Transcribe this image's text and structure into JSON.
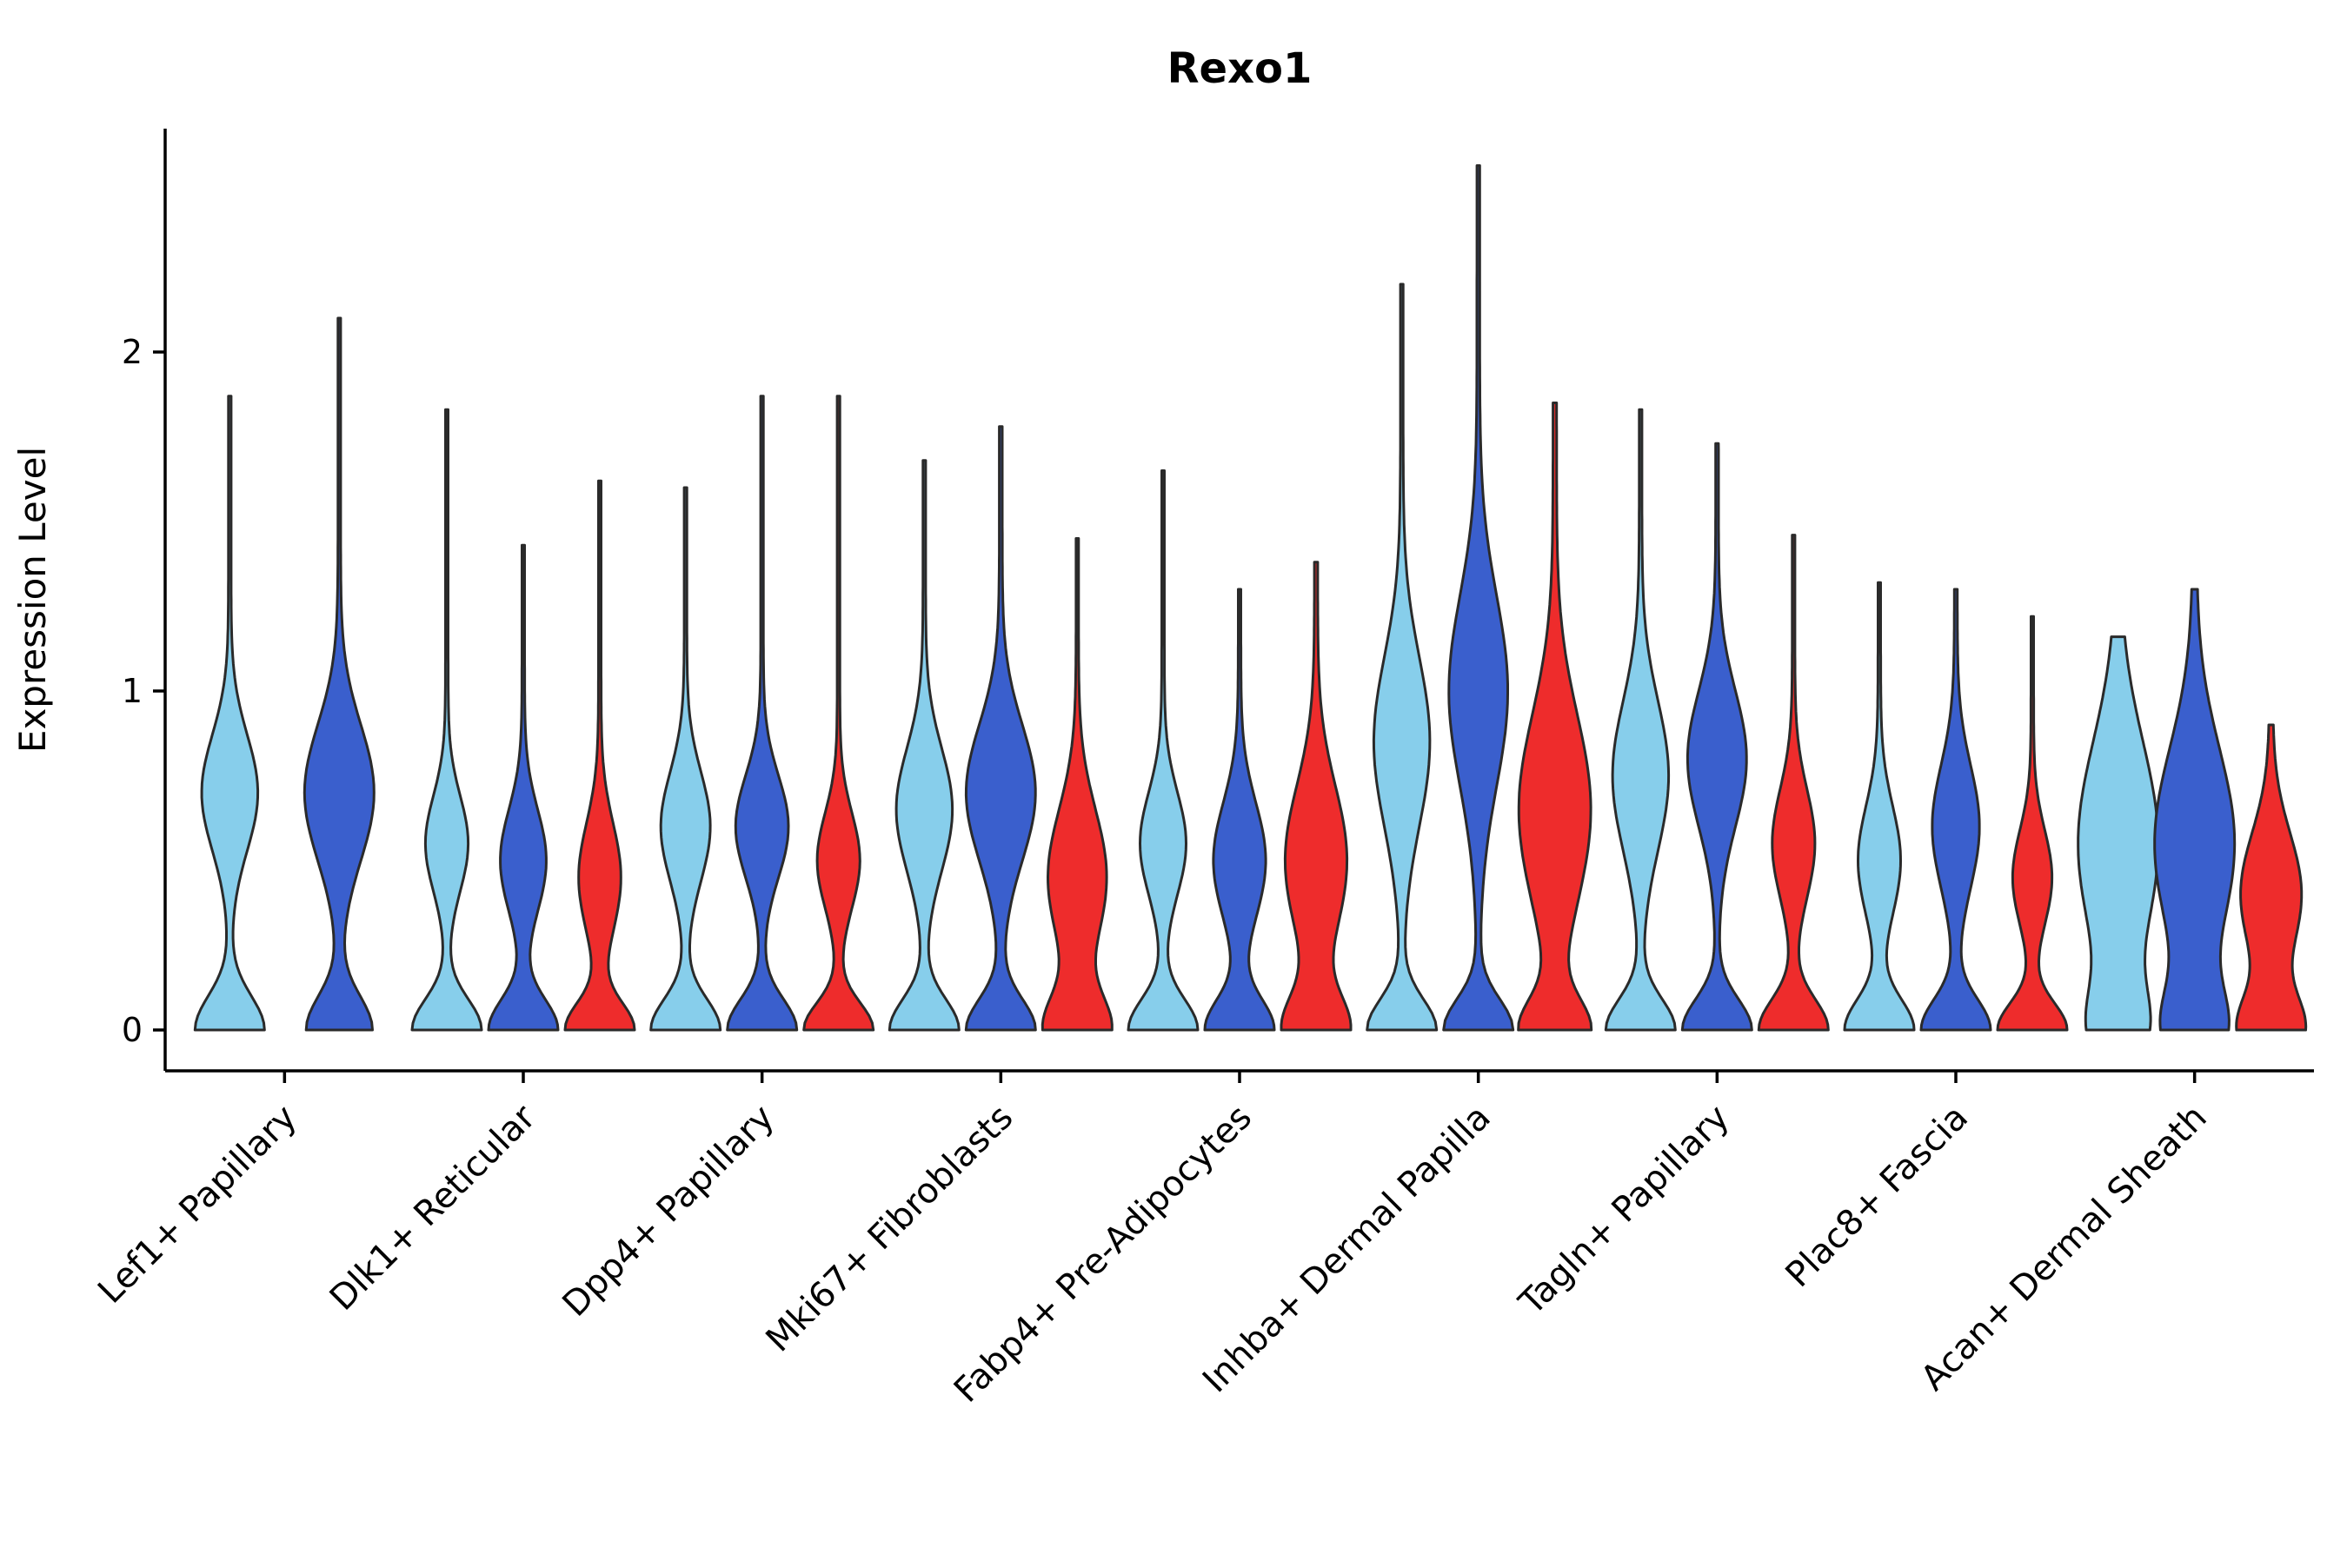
{
  "chart_data": {
    "type": "violin",
    "title": "Rexo1",
    "ylabel": "Expression Level",
    "xlabel": "",
    "ylim": [
      0,
      2.6
    ],
    "yticks": [
      0,
      1,
      2
    ],
    "grid": false,
    "legend": "none",
    "series_colors": [
      "#87CEEB",
      "#3A5FCD",
      "#EE2C2C"
    ],
    "stroke_color": "#2A2A2A",
    "axis_color": "#000000",
    "categories": [
      "Lef1+ Papillary",
      "Dlk1+ Reticular",
      "Dpp4+ Papillary",
      "Mki67+ Fibroblasts",
      "Fabp4+ Pre-Adipocytes",
      "Inhba+ Dermal Papilla",
      "Tagln+ Papillary",
      "Plac8+ Fascia",
      "Acan+ Dermal Sheath"
    ],
    "groups": [
      {
        "category": "Lef1+ Papillary",
        "violins": [
          {
            "c": 0,
            "max": 1.87,
            "base": 0.04,
            "comps": [
              {
                "mu": 0,
                "sigma": 0.1,
                "amp": 1.0
              },
              {
                "mu": 0.7,
                "sigma": 0.17,
                "amp": 0.8
              }
            ]
          },
          {
            "c": 1,
            "max": 2.1,
            "base": 0.04,
            "comps": [
              {
                "mu": 0,
                "sigma": 0.1,
                "amp": 0.95
              },
              {
                "mu": 0.7,
                "sigma": 0.2,
                "amp": 1.0
              }
            ]
          }
        ]
      },
      {
        "category": "Dlk1+ Reticular",
        "violins": [
          {
            "c": 0,
            "max": 1.83,
            "base": 0.04,
            "comps": [
              {
                "mu": 0,
                "sigma": 0.09,
                "amp": 1.0
              },
              {
                "mu": 0.55,
                "sigma": 0.14,
                "amp": 0.6
              }
            ]
          },
          {
            "c": 1,
            "max": 1.43,
            "base": 0.04,
            "comps": [
              {
                "mu": 0,
                "sigma": 0.09,
                "amp": 1.0
              },
              {
                "mu": 0.5,
                "sigma": 0.15,
                "amp": 0.65
              }
            ]
          },
          {
            "c": 2,
            "max": 1.62,
            "base": 0.04,
            "comps": [
              {
                "mu": 0,
                "sigma": 0.08,
                "amp": 1.0
              },
              {
                "mu": 0.45,
                "sigma": 0.16,
                "amp": 0.6
              }
            ]
          }
        ]
      },
      {
        "category": "Dpp4+ Papillary",
        "violins": [
          {
            "c": 0,
            "max": 1.6,
            "base": 0.04,
            "comps": [
              {
                "mu": 0,
                "sigma": 0.09,
                "amp": 1.0
              },
              {
                "mu": 0.6,
                "sigma": 0.16,
                "amp": 0.7
              }
            ]
          },
          {
            "c": 1,
            "max": 1.87,
            "base": 0.04,
            "comps": [
              {
                "mu": 0,
                "sigma": 0.09,
                "amp": 1.0
              },
              {
                "mu": 0.6,
                "sigma": 0.15,
                "amp": 0.75
              }
            ]
          },
          {
            "c": 2,
            "max": 1.87,
            "base": 0.04,
            "comps": [
              {
                "mu": 0,
                "sigma": 0.08,
                "amp": 1.0
              },
              {
                "mu": 0.5,
                "sigma": 0.14,
                "amp": 0.6
              }
            ]
          }
        ]
      },
      {
        "category": "Mki67+ Fibroblasts",
        "violins": [
          {
            "c": 0,
            "max": 1.68,
            "base": 0.04,
            "comps": [
              {
                "mu": 0,
                "sigma": 0.09,
                "amp": 1.0
              },
              {
                "mu": 0.65,
                "sigma": 0.18,
                "amp": 0.8
              }
            ]
          },
          {
            "c": 1,
            "max": 1.78,
            "base": 0.04,
            "comps": [
              {
                "mu": 0,
                "sigma": 0.09,
                "amp": 0.9
              },
              {
                "mu": 0.7,
                "sigma": 0.2,
                "amp": 0.9
              }
            ]
          },
          {
            "c": 2,
            "max": 1.45,
            "base": 0.04,
            "comps": [
              {
                "mu": 0,
                "sigma": 0.1,
                "amp": 1.0
              },
              {
                "mu": 0.45,
                "sigma": 0.2,
                "amp": 0.9
              }
            ]
          }
        ]
      },
      {
        "category": "Fabp4+ Pre-Adipocytes",
        "violins": [
          {
            "c": 0,
            "max": 1.65,
            "base": 0.04,
            "comps": [
              {
                "mu": 0,
                "sigma": 0.09,
                "amp": 1.0
              },
              {
                "mu": 0.55,
                "sigma": 0.15,
                "amp": 0.65
              }
            ]
          },
          {
            "c": 1,
            "max": 1.3,
            "base": 0.04,
            "comps": [
              {
                "mu": 0,
                "sigma": 0.09,
                "amp": 1.0
              },
              {
                "mu": 0.5,
                "sigma": 0.17,
                "amp": 0.75
              }
            ]
          },
          {
            "c": 2,
            "max": 1.38,
            "base": 0.05,
            "comps": [
              {
                "mu": 0,
                "sigma": 0.1,
                "amp": 0.95
              },
              {
                "mu": 0.5,
                "sigma": 0.22,
                "amp": 0.9
              }
            ]
          }
        ]
      },
      {
        "category": "Inhba+ Dermal Papilla",
        "violins": [
          {
            "c": 0,
            "max": 2.2,
            "base": 0.04,
            "comps": [
              {
                "mu": 0,
                "sigma": 0.09,
                "amp": 1.0
              },
              {
                "mu": 0.85,
                "sigma": 0.25,
                "amp": 0.8
              }
            ]
          },
          {
            "c": 1,
            "max": 2.55,
            "base": 0.04,
            "comps": [
              {
                "mu": 0,
                "sigma": 0.09,
                "amp": 0.95
              },
              {
                "mu": 1.0,
                "sigma": 0.28,
                "amp": 0.8
              }
            ]
          },
          {
            "c": 2,
            "max": 1.85,
            "base": 0.05,
            "w": 1.05,
            "comps": [
              {
                "mu": 0,
                "sigma": 0.09,
                "amp": 0.9
              },
              {
                "mu": 0.65,
                "sigma": 0.28,
                "amp": 0.95
              }
            ]
          }
        ]
      },
      {
        "category": "Tagln+ Papillary",
        "violins": [
          {
            "c": 0,
            "max": 1.83,
            "base": 0.04,
            "comps": [
              {
                "mu": 0,
                "sigma": 0.09,
                "amp": 1.0
              },
              {
                "mu": 0.75,
                "sigma": 0.22,
                "amp": 0.8
              }
            ]
          },
          {
            "c": 1,
            "max": 1.73,
            "base": 0.04,
            "comps": [
              {
                "mu": 0,
                "sigma": 0.09,
                "amp": 0.95
              },
              {
                "mu": 0.8,
                "sigma": 0.2,
                "amp": 0.8
              }
            ]
          },
          {
            "c": 2,
            "max": 1.46,
            "base": 0.04,
            "comps": [
              {
                "mu": 0,
                "sigma": 0.09,
                "amp": 1.0
              },
              {
                "mu": 0.55,
                "sigma": 0.16,
                "amp": 0.6
              }
            ]
          }
        ]
      },
      {
        "category": "Plac8+ Fascia",
        "violins": [
          {
            "c": 0,
            "max": 1.32,
            "base": 0.04,
            "comps": [
              {
                "mu": 0,
                "sigma": 0.09,
                "amp": 1.0
              },
              {
                "mu": 0.5,
                "sigma": 0.16,
                "amp": 0.6
              }
            ]
          },
          {
            "c": 1,
            "max": 1.3,
            "base": 0.04,
            "comps": [
              {
                "mu": 0,
                "sigma": 0.09,
                "amp": 0.9
              },
              {
                "mu": 0.6,
                "sigma": 0.18,
                "amp": 0.6
              }
            ]
          },
          {
            "c": 2,
            "max": 1.22,
            "base": 0.04,
            "comps": [
              {
                "mu": 0,
                "sigma": 0.08,
                "amp": 1.0
              },
              {
                "mu": 0.45,
                "sigma": 0.14,
                "amp": 0.55
              }
            ]
          }
        ]
      },
      {
        "category": "Acan+ Dermal Sheath",
        "violins": [
          {
            "c": 0,
            "max": 1.16,
            "base": 0.05,
            "w": 1.15,
            "comps": [
              {
                "mu": 0,
                "sigma": 0.12,
                "amp": 0.6
              },
              {
                "mu": 0.55,
                "sigma": 0.3,
                "amp": 1.0
              }
            ]
          },
          {
            "c": 1,
            "max": 1.3,
            "base": 0.05,
            "w": 1.15,
            "comps": [
              {
                "mu": 0,
                "sigma": 0.12,
                "amp": 0.7
              },
              {
                "mu": 0.55,
                "sigma": 0.28,
                "amp": 1.0
              }
            ]
          },
          {
            "c": 2,
            "max": 0.9,
            "base": 0.05,
            "comps": [
              {
                "mu": 0,
                "sigma": 0.1,
                "amp": 0.9
              },
              {
                "mu": 0.4,
                "sigma": 0.18,
                "amp": 0.85
              }
            ]
          }
        ]
      }
    ]
  }
}
